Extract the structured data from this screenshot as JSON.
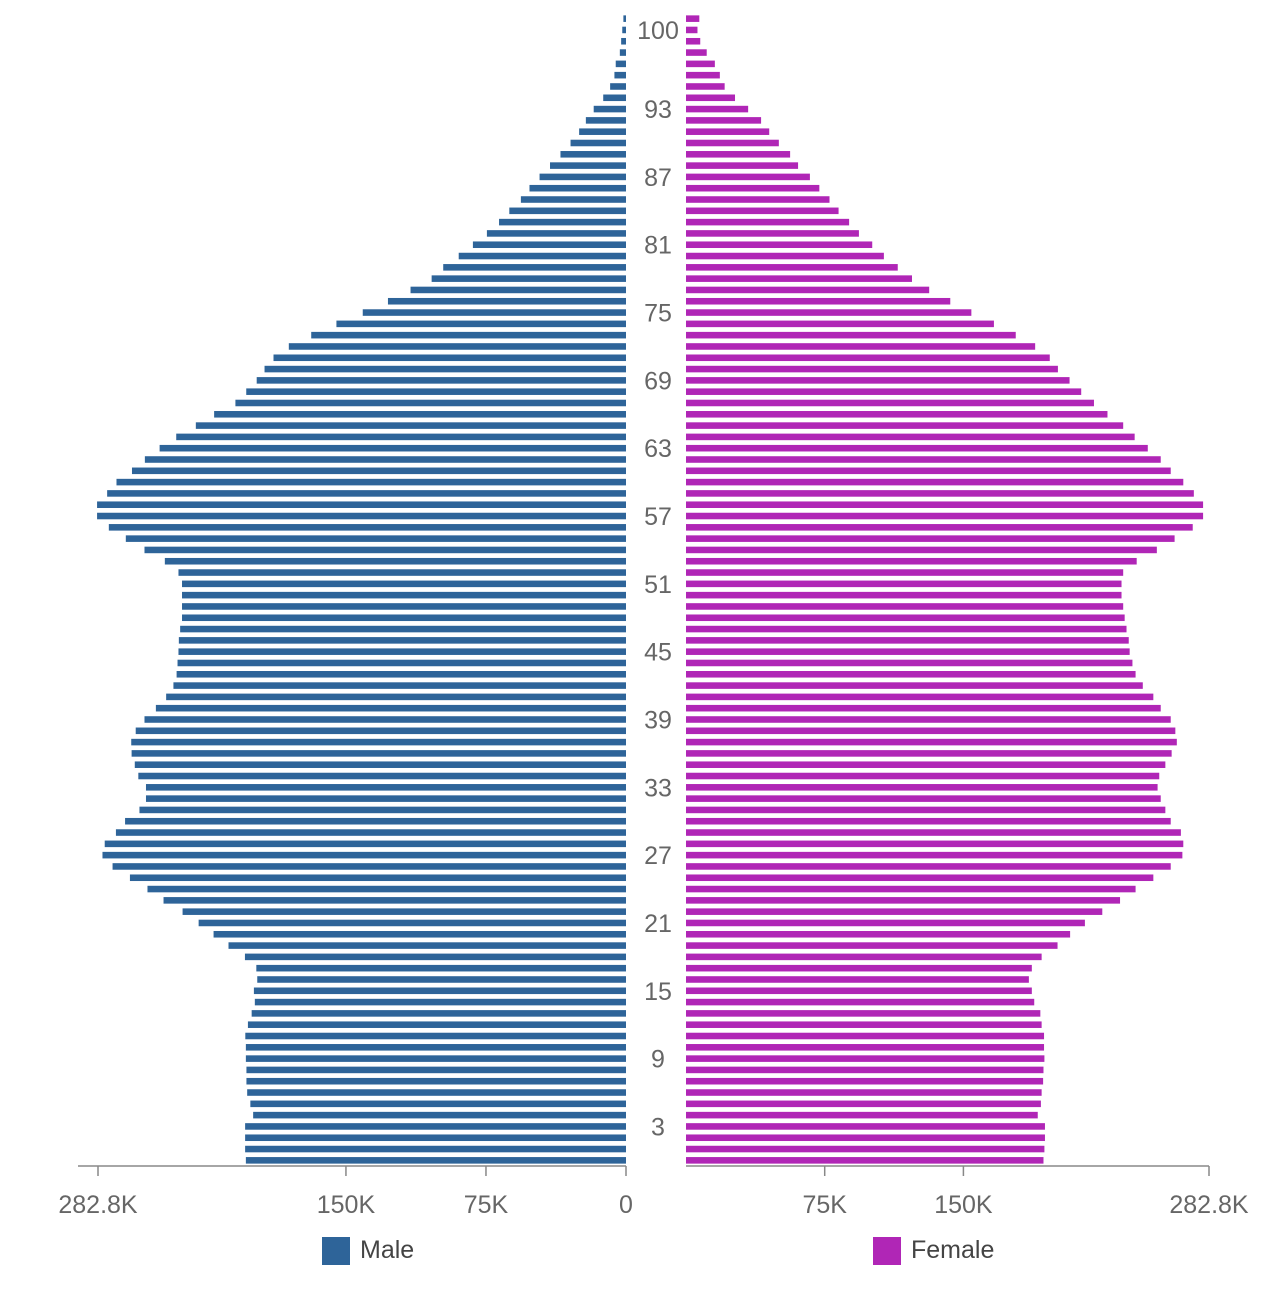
{
  "chart_data": {
    "type": "bar",
    "orientation": "horizontal-butterfly",
    "age_labels": [
      "100",
      "93",
      "87",
      "81",
      "75",
      "69",
      "63",
      "57",
      "51",
      "45",
      "39",
      "33",
      "27",
      "21",
      "15",
      "9",
      "3"
    ],
    "x_ticks_left": [
      "282.8K",
      "150K",
      "75K",
      "0"
    ],
    "x_ticks_right": [
      "75K",
      "150K",
      "282.8K"
    ],
    "xlim": [
      0,
      282800
    ],
    "categories": [
      "0",
      "1",
      "2",
      "3",
      "4",
      "5",
      "6",
      "7",
      "8",
      "9",
      "10",
      "11",
      "12",
      "13",
      "14",
      "15",
      "16",
      "17",
      "18",
      "19",
      "20",
      "21",
      "22",
      "23",
      "24",
      "25",
      "26",
      "27",
      "28",
      "29",
      "30",
      "31",
      "32",
      "33",
      "34",
      "35",
      "36",
      "37",
      "38",
      "39",
      "40",
      "41",
      "42",
      "43",
      "44",
      "45",
      "46",
      "47",
      "48",
      "49",
      "50",
      "51",
      "52",
      "53",
      "54",
      "55",
      "56",
      "57",
      "58",
      "59",
      "60",
      "61",
      "62",
      "63",
      "64",
      "65",
      "66",
      "67",
      "68",
      "69",
      "70",
      "71",
      "72",
      "73",
      "74",
      "75",
      "76",
      "77",
      "78",
      "79",
      "80",
      "81",
      "82",
      "83",
      "84",
      "85",
      "86",
      "87",
      "88",
      "89",
      "90",
      "91",
      "92",
      "93",
      "94",
      "95",
      "96",
      "97",
      "98",
      "99",
      "100",
      "101"
    ],
    "series": [
      {
        "name": "Male",
        "color": "#2e6499",
        "values": [
          203600,
          204000,
          204000,
          204000,
          199700,
          201200,
          202900,
          203300,
          203300,
          203600,
          203600,
          203900,
          202500,
          200500,
          198800,
          199300,
          197500,
          198000,
          204100,
          212900,
          220900,
          228900,
          237500,
          247700,
          256300,
          265700,
          275000,
          280400,
          279200,
          273200,
          268300,
          260600,
          257100,
          257100,
          261200,
          263100,
          264800,
          265000,
          262600,
          257900,
          251800,
          246300,
          242400,
          240700,
          240200,
          239700,
          239500,
          238800,
          237800,
          237800,
          237800,
          237800,
          239700,
          247000,
          257900,
          267900,
          277000,
          283300,
          283300,
          277900,
          272900,
          264600,
          257700,
          249800,
          240900,
          230400,
          220600,
          209200,
          203400,
          197800,
          193600,
          188800,
          180600,
          168600,
          155100,
          141000,
          127500,
          115400,
          104100,
          97900,
          89600,
          82000,
          74500,
          68000,
          62500,
          56300,
          51700,
          46300,
          40700,
          35100,
          29700,
          25100,
          21500,
          17300,
          12200,
          8500,
          6200,
          5500,
          3300,
          2600,
          2000,
          1400
        ]
      },
      {
        "name": "Female",
        "color": "#b026b6",
        "values": [
          193300,
          193800,
          194100,
          194100,
          190200,
          191900,
          192300,
          193100,
          193300,
          193800,
          193600,
          193600,
          192300,
          191600,
          188300,
          187000,
          185400,
          187000,
          192300,
          200900,
          207700,
          215700,
          225100,
          234700,
          243100,
          252700,
          262100,
          268400,
          268900,
          267600,
          262100,
          259200,
          256700,
          255000,
          255900,
          259200,
          262600,
          265400,
          264600,
          262100,
          256700,
          252700,
          247000,
          243100,
          241400,
          239900,
          239400,
          238200,
          237200,
          236400,
          235500,
          235500,
          236400,
          243700,
          254600,
          264200,
          274000,
          279600,
          279600,
          274600,
          268900,
          262100,
          256700,
          249700,
          242600,
          236400,
          227900,
          220600,
          213700,
          207400,
          201100,
          196700,
          188800,
          178300,
          166500,
          154300,
          142900,
          131500,
          122200,
          114500,
          107000,
          100700,
          93500,
          88200,
          82500,
          77600,
          72100,
          67000,
          60600,
          56300,
          50200,
          45000,
          40600,
          33600,
          26500,
          20900,
          18300,
          15600,
          11200,
          7700,
          6200,
          7200
        ]
      }
    ],
    "legend": [
      "Male",
      "Female"
    ]
  }
}
